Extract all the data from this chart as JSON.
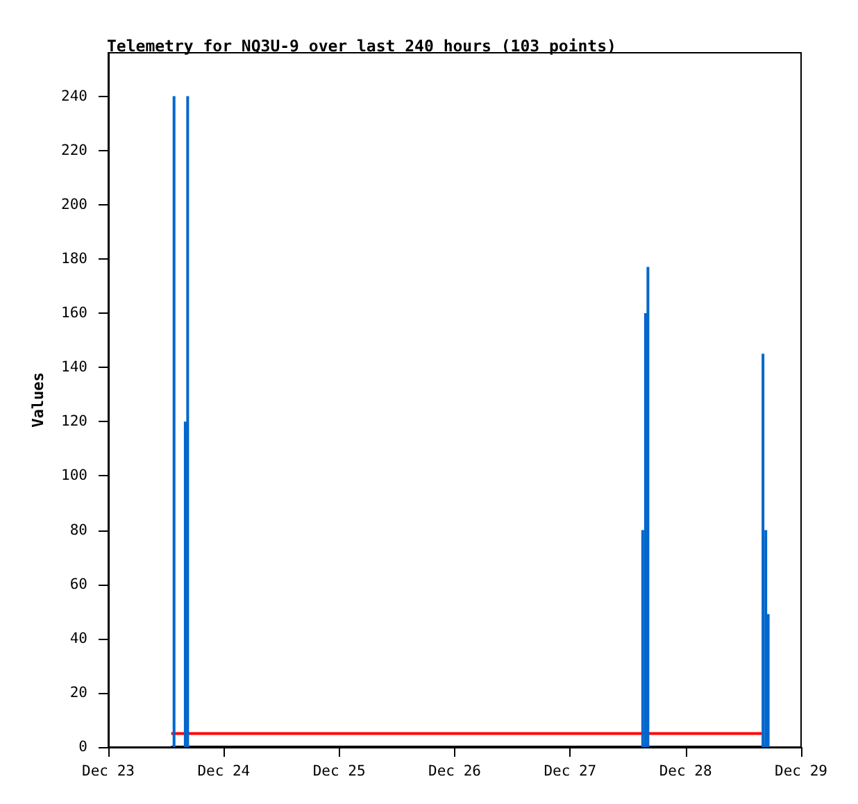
{
  "chart_data": {
    "type": "bar",
    "title": "Telemetry for NQ3U-9 over last 240 hours (103 points)",
    "ylabel": "Values",
    "xlim": [
      "--12-23",
      "--12-29"
    ],
    "xticks": [
      {
        "value": "--12-23",
        "label": "Dec 23"
      },
      {
        "value": "--12-24",
        "label": "Dec 24"
      },
      {
        "value": "--12-25",
        "label": "Dec 25"
      },
      {
        "value": "--12-26",
        "label": "Dec 26"
      },
      {
        "value": "--12-27",
        "label": "Dec 27"
      },
      {
        "value": "--12-28",
        "label": "Dec 28"
      },
      {
        "value": "--12-29",
        "label": "Dec 29"
      }
    ],
    "ylim": [
      0,
      256
    ],
    "yticks": [
      0,
      20,
      40,
      60,
      80,
      100,
      120,
      140,
      160,
      180,
      200,
      220,
      240
    ],
    "marker": "none",
    "line_style": "solid",
    "series": [
      {
        "type": "line",
        "color": "#ff0000",
        "x": [
          "--12-23T13:05",
          "--12-28T15:50"
        ],
        "values": [
          5,
          5
        ]
      },
      {
        "type": "line",
        "color": "#000000",
        "x": [
          "--12-23T13:05",
          "--12-28T17:10"
        ],
        "values": [
          0,
          0
        ]
      },
      {
        "color": "#0066cc",
        "x": [
          "--12-23T13:40",
          "--12-23T16:00",
          "--12-23T16:30",
          "--12-27T15:05",
          "--12-27T15:40",
          "--12-27T16:10",
          "--12-28T16:05",
          "--12-28T16:40",
          "--12-28T17:10"
        ],
        "values": [
          240,
          120,
          240,
          80,
          160,
          177,
          145,
          80,
          49
        ]
      }
    ]
  }
}
